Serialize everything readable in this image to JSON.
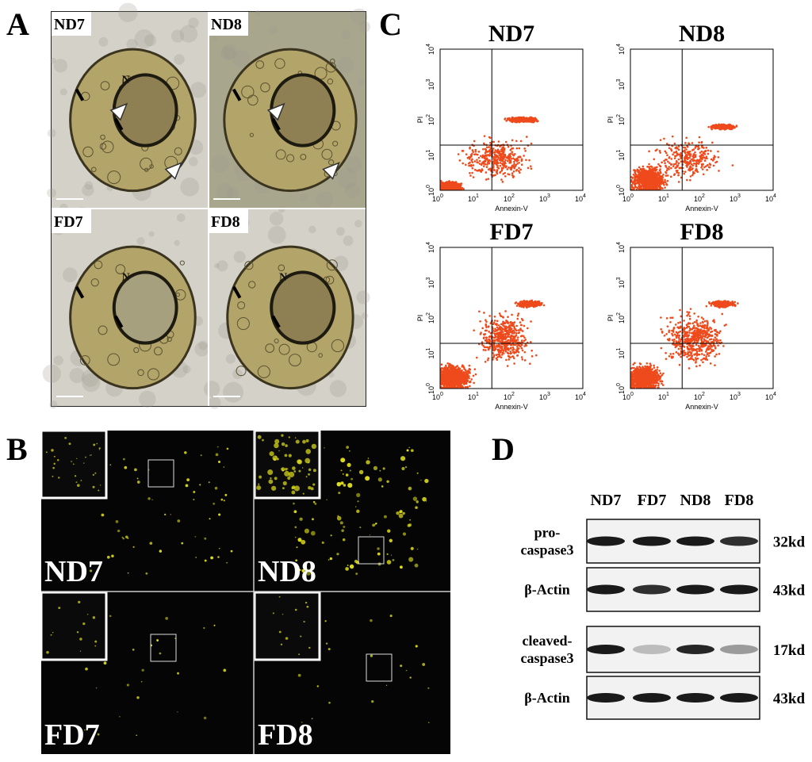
{
  "figure": {
    "A": {
      "label": "A",
      "images": [
        {
          "label": "ND7",
          "nucleus": "N"
        },
        {
          "label": "ND8"
        },
        {
          "label": "FD7",
          "nucleus": "N"
        },
        {
          "label": "FD8",
          "nucleus": "N"
        }
      ]
    },
    "B": {
      "label": "B",
      "images": [
        {
          "label": "ND7"
        },
        {
          "label": "ND8"
        },
        {
          "label": "FD7"
        },
        {
          "label": "FD8"
        }
      ]
    },
    "C": {
      "label": "C",
      "x_axis": "Annexin-V",
      "y_axis": "PI",
      "tick_base": "10",
      "exponents": [
        "0",
        "1",
        "2",
        "3",
        "4"
      ],
      "plots": [
        {
          "title": "ND7"
        },
        {
          "title": "ND8"
        },
        {
          "title": "FD7"
        },
        {
          "title": "FD8"
        }
      ]
    },
    "D": {
      "label": "D",
      "lanes": [
        "ND7",
        "FD7",
        "ND8",
        "FD8"
      ],
      "rows": [
        {
          "label": [
            "pro-",
            "caspase3"
          ],
          "size": "32kd"
        },
        {
          "label": [
            "β-Actin"
          ],
          "size": "43kd"
        },
        {
          "label": [
            "cleaved-",
            "caspase3"
          ],
          "size": "17kd"
        },
        {
          "label": [
            "β-Actin"
          ],
          "size": "43kd"
        }
      ]
    }
  }
}
